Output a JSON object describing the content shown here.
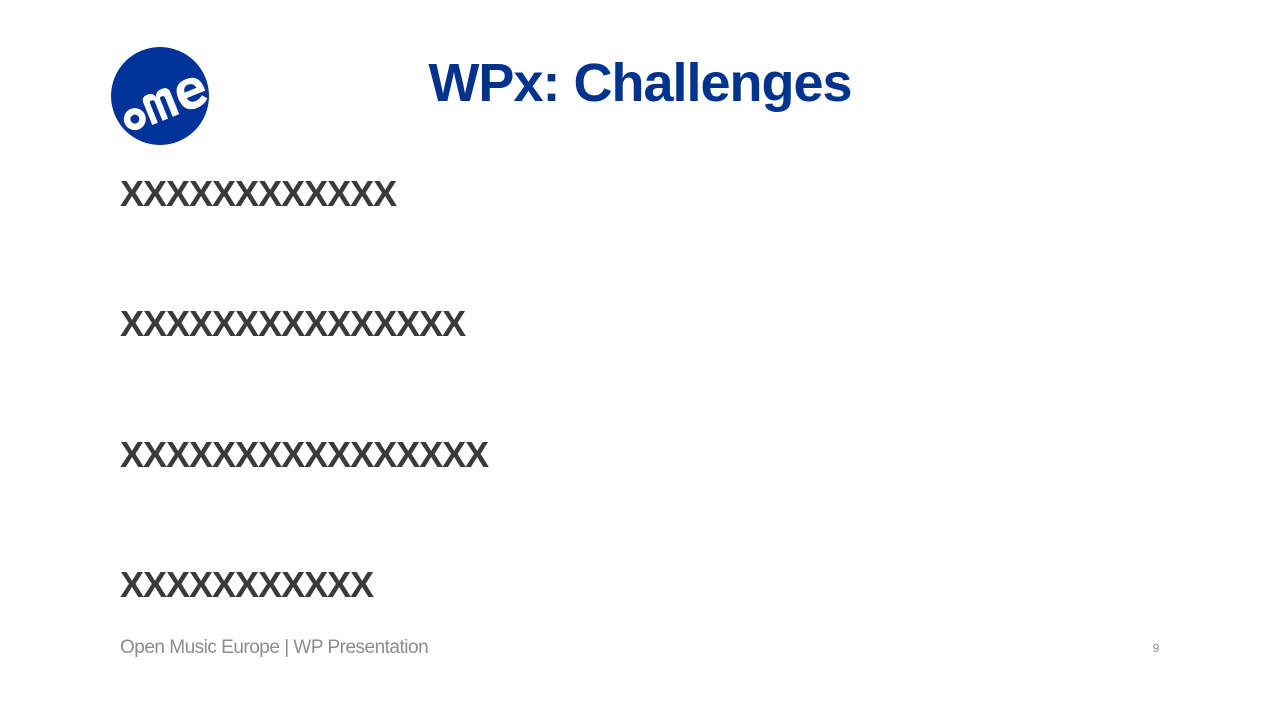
{
  "logo": {
    "brand_color": "#003399"
  },
  "slide": {
    "title": "WPx: Challenges",
    "bullets": [
      "XXXXXXXXXXXX",
      "XXXXXXXXXXXXXXX",
      "XXXXXXXXXXXXXXXX",
      "XXXXXXXXXXX"
    ],
    "footer": "Open Music Europe | WP Presentation",
    "page_number": "9"
  },
  "colors": {
    "title": "#00338e",
    "body_text": "#3a3a3a",
    "footer_text": "#8c8c8c",
    "background": "#ffffff"
  }
}
